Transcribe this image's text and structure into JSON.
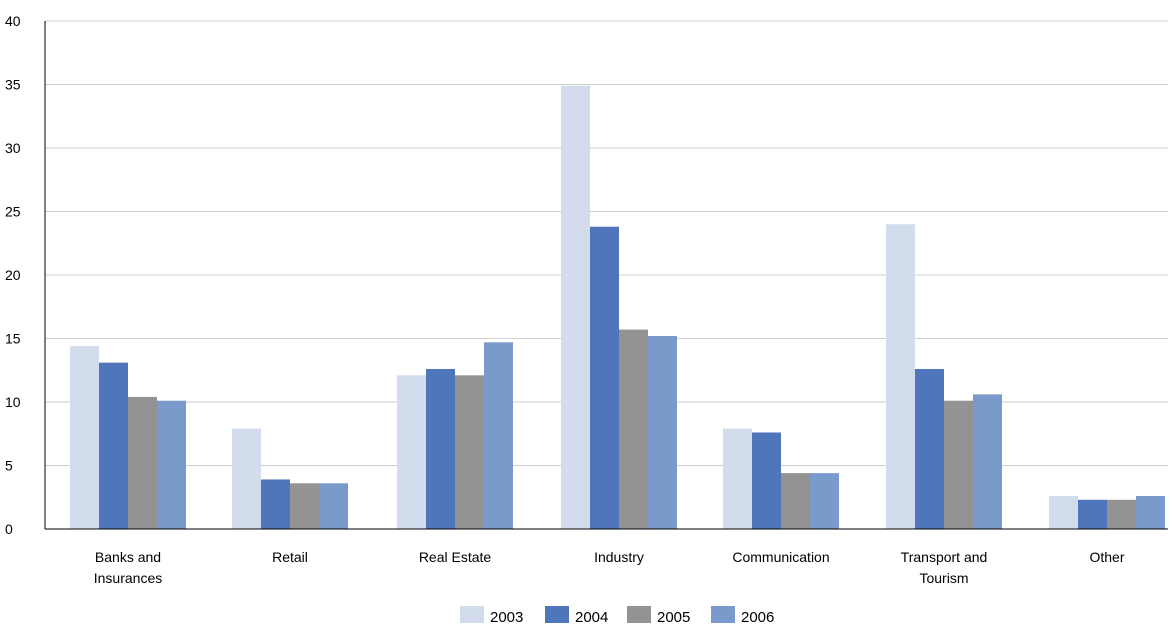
{
  "chart_data": {
    "type": "bar",
    "title": "",
    "xlabel": "",
    "ylabel": "",
    "ylim": [
      0,
      40
    ],
    "yticks": [
      0,
      5,
      10,
      15,
      20,
      25,
      30,
      35,
      40
    ],
    "grid": true,
    "legend_position": "bottom",
    "categories": [
      [
        "Banks and",
        "Insurances"
      ],
      [
        "Retail"
      ],
      [
        "Real Estate"
      ],
      [
        "Industry"
      ],
      [
        "Communication"
      ],
      [
        "Transport and",
        "Tourism"
      ],
      [
        "Other"
      ]
    ],
    "series": [
      {
        "name": "2003",
        "color": "#d3dced",
        "values": [
          14.4,
          7.9,
          12.1,
          34.9,
          7.9,
          24.0,
          2.6
        ]
      },
      {
        "name": "2004",
        "color": "#4f75bb",
        "values": [
          13.1,
          3.9,
          12.6,
          23.8,
          7.6,
          12.6,
          2.3
        ]
      },
      {
        "name": "2005",
        "color": "#939393",
        "values": [
          10.4,
          3.6,
          12.1,
          15.7,
          4.4,
          10.1,
          2.3
        ]
      },
      {
        "name": "2006",
        "color": "#7b9acc",
        "values": [
          10.1,
          3.6,
          14.7,
          15.2,
          4.4,
          10.6,
          2.6
        ]
      }
    ]
  }
}
